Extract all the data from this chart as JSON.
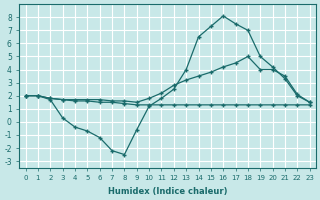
{
  "bg_color": "#c8e8e8",
  "grid_color": "#ffffff",
  "line_color": "#1a6b6b",
  "xlabel": "Humidex (Indice chaleur)",
  "xlim": [
    -0.5,
    23.5
  ],
  "ylim": [
    -3.5,
    9.0
  ],
  "xticks": [
    0,
    1,
    2,
    3,
    4,
    5,
    6,
    7,
    8,
    9,
    10,
    11,
    12,
    13,
    14,
    15,
    16,
    17,
    18,
    19,
    20,
    21,
    22,
    23
  ],
  "yticks": [
    -3,
    -2,
    -1,
    0,
    1,
    2,
    3,
    4,
    5,
    6,
    7,
    8
  ],
  "line1_x": [
    0,
    1,
    2,
    3,
    4,
    5,
    6,
    7,
    8,
    9,
    10,
    11,
    12,
    13,
    14,
    15,
    16,
    17,
    18,
    19,
    20,
    21,
    22,
    23
  ],
  "line1_y": [
    2.0,
    2.0,
    1.7,
    0.3,
    -0.4,
    -0.7,
    -1.2,
    -2.2,
    -2.5,
    -0.6,
    1.2,
    1.8,
    2.5,
    4.0,
    6.5,
    7.3,
    8.1,
    7.5,
    7.0,
    5.0,
    4.2,
    3.3,
    2.0,
    1.5
  ],
  "line2_x": [
    0,
    1,
    2,
    3,
    4,
    5,
    6,
    7,
    8,
    9,
    10,
    11,
    12,
    13,
    14,
    15,
    16,
    17,
    18,
    19,
    20,
    21,
    22,
    23
  ],
  "line2_y": [
    2.0,
    2.0,
    1.8,
    1.7,
    1.7,
    1.7,
    1.7,
    1.6,
    1.6,
    1.5,
    1.8,
    2.2,
    2.8,
    3.2,
    3.5,
    3.8,
    4.2,
    4.5,
    5.0,
    4.0,
    4.0,
    3.5,
    2.1,
    1.5
  ],
  "line3_x": [
    0,
    1,
    2,
    3,
    4,
    5,
    6,
    7,
    8,
    9,
    10,
    11,
    12,
    13,
    14,
    15,
    16,
    17,
    18,
    19,
    20,
    21,
    22,
    23
  ],
  "line3_y": [
    2.0,
    2.0,
    1.8,
    1.7,
    1.6,
    1.6,
    1.5,
    1.5,
    1.4,
    1.3,
    1.3,
    1.3,
    1.3,
    1.3,
    1.3,
    1.3,
    1.3,
    1.3,
    1.3,
    1.3,
    1.3,
    1.3,
    1.3,
    1.3
  ]
}
